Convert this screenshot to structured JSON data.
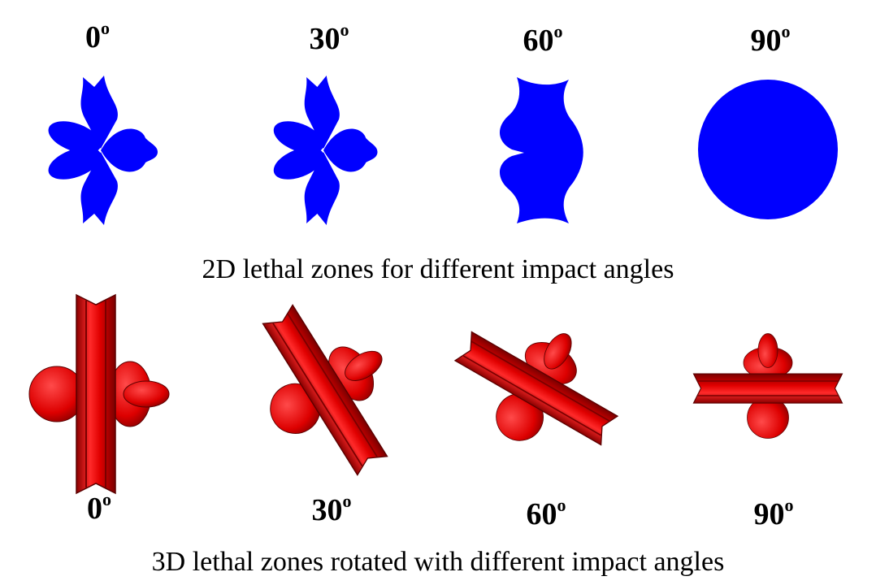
{
  "panels_2d": {
    "angles": [
      {
        "value": "0",
        "unit": "o"
      },
      {
        "value": "30",
        "unit": "o"
      },
      {
        "value": "60",
        "unit": "o"
      },
      {
        "value": "90",
        "unit": "o"
      }
    ],
    "caption": "2D lethal zones for different impact angles"
  },
  "panels_3d": {
    "angles": [
      {
        "value": "0",
        "unit": "o"
      },
      {
        "value": "30",
        "unit": "o"
      },
      {
        "value": "60",
        "unit": "o"
      },
      {
        "value": "90",
        "unit": "o"
      }
    ],
    "caption": "3D lethal zones rotated with different impact angles"
  }
}
